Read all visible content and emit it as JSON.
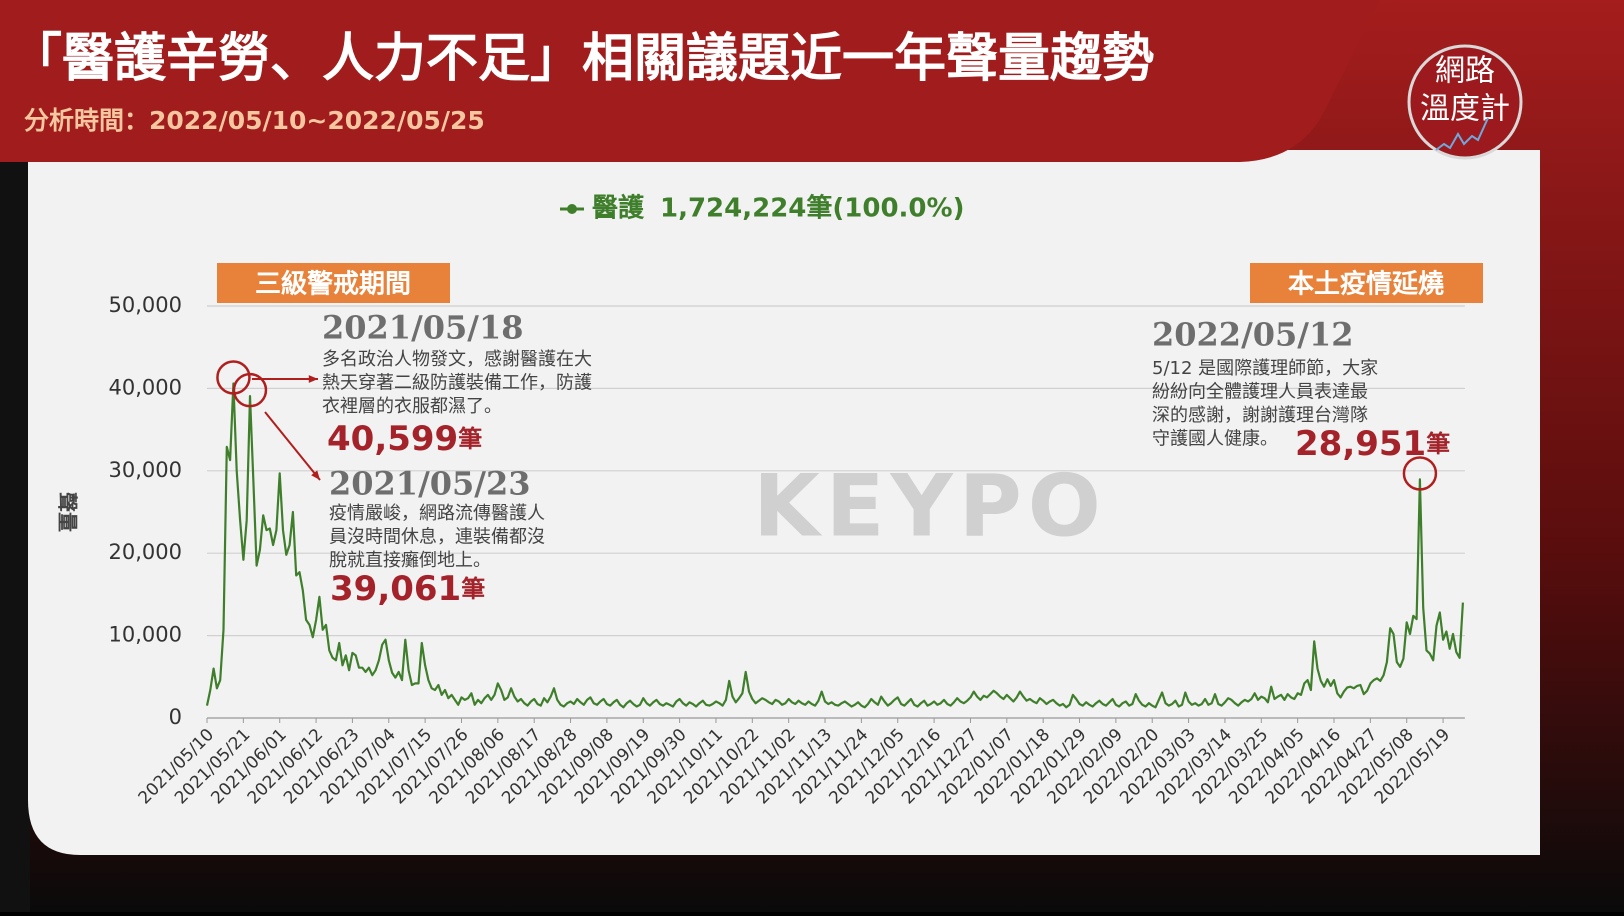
{
  "header": {
    "title": "「醫護辛勞、人力不足」相關議題近一年聲量趨勢",
    "subtitle": "分析時間：2022/05/10~2022/05/25",
    "logo_top": "網路",
    "logo_bottom": "溫度計"
  },
  "watermark": "KEYPO",
  "chart_data": {
    "type": "line",
    "y_label": "聲量",
    "total_label": "1,724,224筆(100.0%)",
    "ylim": [
      0,
      50000
    ],
    "yticks": [
      {
        "value": 0,
        "label": "0"
      },
      {
        "value": 10000,
        "label": "10,000"
      },
      {
        "value": 20000,
        "label": "20,000"
      },
      {
        "value": 30000,
        "label": "30,000"
      },
      {
        "value": 40000,
        "label": "40,000"
      },
      {
        "value": 50000,
        "label": "50,000"
      }
    ],
    "grid": true,
    "periods": [
      "三級警戒期間",
      "本土疫情延燒"
    ],
    "categories": [
      "2021/05/10",
      null,
      null,
      null,
      null,
      null,
      null,
      null,
      null,
      null,
      null,
      "2021/05/21",
      null,
      null,
      null,
      null,
      null,
      null,
      null,
      null,
      null,
      null,
      "2021/06/01",
      null,
      null,
      null,
      null,
      null,
      null,
      null,
      null,
      null,
      null,
      "2021/06/12",
      null,
      null,
      null,
      null,
      null,
      null,
      null,
      null,
      null,
      null,
      "2021/06/23",
      null,
      null,
      null,
      null,
      null,
      null,
      null,
      null,
      null,
      null,
      "2021/07/04",
      null,
      null,
      null,
      null,
      null,
      null,
      null,
      null,
      null,
      null,
      "2021/07/15",
      null,
      null,
      null,
      null,
      null,
      null,
      null,
      null,
      null,
      null,
      "2021/07/26",
      null,
      null,
      null,
      null,
      null,
      null,
      null,
      null,
      null,
      null,
      "2021/08/06",
      null,
      null,
      null,
      null,
      null,
      null,
      null,
      null,
      null,
      null,
      "2021/08/17",
      null,
      null,
      null,
      null,
      null,
      null,
      null,
      null,
      null,
      null,
      "2021/08/28",
      null,
      null,
      null,
      null,
      null,
      null,
      null,
      null,
      null,
      null,
      "2021/09/08",
      null,
      null,
      null,
      null,
      null,
      null,
      null,
      null,
      null,
      null,
      "2021/09/19",
      null,
      null,
      null,
      null,
      null,
      null,
      null,
      null,
      null,
      null,
      "2021/09/30",
      null,
      null,
      null,
      null,
      null,
      null,
      null,
      null,
      null,
      null,
      "2021/10/11",
      null,
      null,
      null,
      null,
      null,
      null,
      null,
      null,
      null,
      null,
      "2021/10/22",
      null,
      null,
      null,
      null,
      null,
      null,
      null,
      null,
      null,
      null,
      "2021/11/02",
      null,
      null,
      null,
      null,
      null,
      null,
      null,
      null,
      null,
      null,
      "2021/11/13",
      null,
      null,
      null,
      null,
      null,
      null,
      null,
      null,
      null,
      null,
      "2021/11/24",
      null,
      null,
      null,
      null,
      null,
      null,
      null,
      null,
      null,
      null,
      "2021/12/05",
      null,
      null,
      null,
      null,
      null,
      null,
      null,
      null,
      null,
      null,
      "2021/12/16",
      null,
      null,
      null,
      null,
      null,
      null,
      null,
      null,
      null,
      null,
      "2021/12/27",
      null,
      null,
      null,
      null,
      null,
      null,
      null,
      null,
      null,
      null,
      "2022/01/07",
      null,
      null,
      null,
      null,
      null,
      null,
      null,
      null,
      null,
      null,
      "2022/01/18",
      null,
      null,
      null,
      null,
      null,
      null,
      null,
      null,
      null,
      null,
      "2022/01/29",
      null,
      null,
      null,
      null,
      null,
      null,
      null,
      null,
      null,
      null,
      "2022/02/09",
      null,
      null,
      null,
      null,
      null,
      null,
      null,
      null,
      null,
      null,
      "2022/02/20",
      null,
      null,
      null,
      null,
      null,
      null,
      null,
      null,
      null,
      null,
      "2022/03/03",
      null,
      null,
      null,
      null,
      null,
      null,
      null,
      null,
      null,
      null,
      "2022/03/14",
      null,
      null,
      null,
      null,
      null,
      null,
      null,
      null,
      null,
      null,
      "2022/03/25",
      null,
      null,
      null,
      null,
      null,
      null,
      null,
      null,
      null,
      null,
      "2022/04/05",
      null,
      null,
      null,
      null,
      null,
      null,
      null,
      null,
      null,
      null,
      "2022/04/16",
      null,
      null,
      null,
      null,
      null,
      null,
      null,
      null,
      null,
      null,
      "2022/04/27",
      null,
      null,
      null,
      null,
      null,
      null,
      null,
      null,
      null,
      null,
      "2022/05/08",
      null,
      null,
      null,
      null,
      null,
      null,
      null,
      null,
      null,
      null,
      "2022/05/19",
      null,
      null,
      null,
      null,
      null,
      null
    ],
    "series": [
      {
        "name": "醫護",
        "color": "#3f7f2c",
        "values": [
          1500,
          3400,
          6000,
          3600,
          4600,
          10700,
          32900,
          31300,
          40599,
          30000,
          24000,
          19200,
          24000,
          39061,
          29000,
          18500,
          20400,
          24600,
          22800,
          23000,
          21000,
          22800,
          29700,
          22800,
          19800,
          21000,
          25000,
          17300,
          17700,
          15500,
          11900,
          11300,
          9800,
          11900,
          14700,
          10700,
          11300,
          8200,
          7300,
          7000,
          9100,
          6400,
          7600,
          5800,
          7900,
          7600,
          6100,
          6100,
          5600,
          6100,
          5200,
          5800,
          7000,
          8900,
          9500,
          7000,
          5500,
          4900,
          5600,
          4600,
          9500,
          5800,
          4000,
          4200,
          4200,
          9100,
          6400,
          4600,
          3600,
          3400,
          4000,
          2800,
          3400,
          2400,
          2800,
          2200,
          1600,
          2500,
          2200,
          2400,
          3000,
          1600,
          2200,
          1800,
          2400,
          2800,
          2200,
          2800,
          4200,
          3400,
          2200,
          2500,
          3600,
          2600,
          2000,
          2300,
          1800,
          1500,
          2000,
          2300,
          1700,
          1500,
          2400,
          1900,
          2600,
          3600,
          2200,
          1600,
          1400,
          1800,
          2000,
          1700,
          2300,
          1900,
          1600,
          2200,
          2500,
          1800,
          1600,
          2000,
          2300,
          1700,
          1500,
          1900,
          2200,
          1600,
          1300,
          1800,
          2100,
          1700,
          1400,
          1600,
          2400,
          1800,
          1500,
          1900,
          2200,
          1700,
          1500,
          1800,
          1600,
          1400,
          2000,
          2300,
          1800,
          1500,
          1900,
          1700,
          1400,
          1800,
          2100,
          1600,
          1500,
          1700,
          2000,
          1800,
          1500,
          2200,
          4500,
          2600,
          1900,
          2400,
          3000,
          5600,
          3200,
          2300,
          1800,
          2100,
          2400,
          2200,
          1900,
          1700,
          2200,
          2000,
          1600,
          1800,
          2300,
          1900,
          1700,
          2100,
          1800,
          1600,
          2000,
          1700,
          1500,
          2100,
          3200,
          2000,
          1700,
          1900,
          1600,
          1500,
          1800,
          2000,
          1700,
          1400,
          1600,
          1900,
          1500,
          1300,
          1700,
          2300,
          1900,
          1600,
          2600,
          2000,
          1500,
          1800,
          2200,
          2500,
          1700,
          1500,
          1900,
          2300,
          1600,
          1400,
          1800,
          2100,
          1500,
          1700,
          2000,
          1600,
          1800,
          2200,
          1700,
          1500,
          1900,
          2400,
          2000,
          1800,
          2100,
          2500,
          3200,
          2600,
          2200,
          2700,
          2500,
          2900,
          3300,
          3000,
          2600,
          2300,
          2800,
          2400,
          2000,
          2500,
          3200,
          2600,
          2100,
          2300,
          2000,
          1800,
          2400,
          2100,
          1700,
          2000,
          2200,
          1800,
          1500,
          1700,
          1300,
          1600,
          2800,
          2300,
          1700,
          1500,
          1900,
          1600,
          1400,
          1800,
          2100,
          1700,
          1500,
          1900,
          2300,
          1600,
          1400,
          1800,
          2000,
          1500,
          1700,
          2900,
          2100,
          1600,
          1400,
          1800,
          1500,
          1300,
          2200,
          3100,
          1800,
          1500,
          1700,
          2100,
          1400,
          1600,
          3100,
          2000,
          1600,
          1800,
          1500,
          1700,
          2300,
          1600,
          1800,
          2900,
          1700,
          1500,
          1900,
          2400,
          2200,
          1800,
          1500,
          1900,
          2200,
          2000,
          2300,
          3000,
          2200,
          2600,
          2400,
          1900,
          3800,
          2300,
          2600,
          2800,
          2200,
          2900,
          2500,
          2300,
          3000,
          2800,
          4200,
          4600,
          3400,
          9300,
          6000,
          4500,
          3800,
          4700,
          3900,
          4600,
          3000,
          2500,
          3200,
          3700,
          3800,
          3600,
          3900,
          4000,
          2900,
          3300,
          4200,
          4600,
          4800,
          4500,
          5200,
          6800,
          10900,
          10200,
          6800,
          6200,
          7200,
          11600,
          10200,
          12400,
          12000,
          28951,
          13400,
          8200,
          7800,
          7000,
          11200,
          12800,
          9500,
          10500,
          8400,
          10200,
          8000,
          7300,
          14000
        ]
      }
    ],
    "annotations": [
      {
        "date": "2021/05/18",
        "lines": [
          "多名政治人物發文，感謝醫護在大",
          "熱天穿著二級防護裝備工作，防護",
          "衣裡層的衣服都濕了。"
        ],
        "value": 40599,
        "value_label": "40,599",
        "unit": "筆"
      },
      {
        "date": "2021/05/23",
        "lines": [
          "疫情嚴峻，網路流傳醫護人",
          "員沒時間休息，連裝備都沒",
          "脫就直接癱倒地上。"
        ],
        "value": 39061,
        "value_label": "39,061",
        "unit": "筆"
      },
      {
        "date": "2022/05/12",
        "lines": [
          "5/12 是國際護理師節，大家",
          "紛紛向全體護理人員表達最",
          "深的感謝，謝謝護理台灣隊",
          "守護國人健康。"
        ],
        "value": 28951,
        "value_label": "28,951",
        "unit": "筆"
      }
    ]
  }
}
